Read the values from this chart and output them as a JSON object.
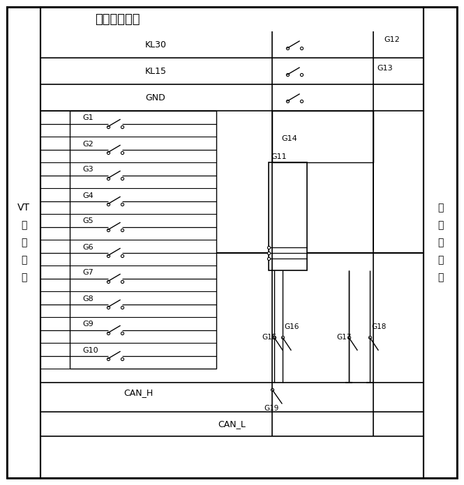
{
  "title": "故障注入矩阵",
  "left_label": "VT\n测\n试\n板\n卡",
  "right_label": "车\n身\n控\n制\n器",
  "bg": "#ffffff",
  "lc": "#000000",
  "g1_g10": [
    "G1",
    "G2",
    "G3",
    "G4",
    "G5",
    "G6",
    "G7",
    "G8",
    "G9",
    "G10"
  ],
  "top_row_labels": [
    "KL30",
    "KL15",
    "GND"
  ],
  "g12": "G12",
  "g13": "G13",
  "g14": "G14",
  "g11": "G11",
  "g15": "G15",
  "g16": "G16",
  "g17": "G17",
  "g18": "G18",
  "can_h": "CAN_H",
  "g19": "G19",
  "can_l": "CAN_L"
}
